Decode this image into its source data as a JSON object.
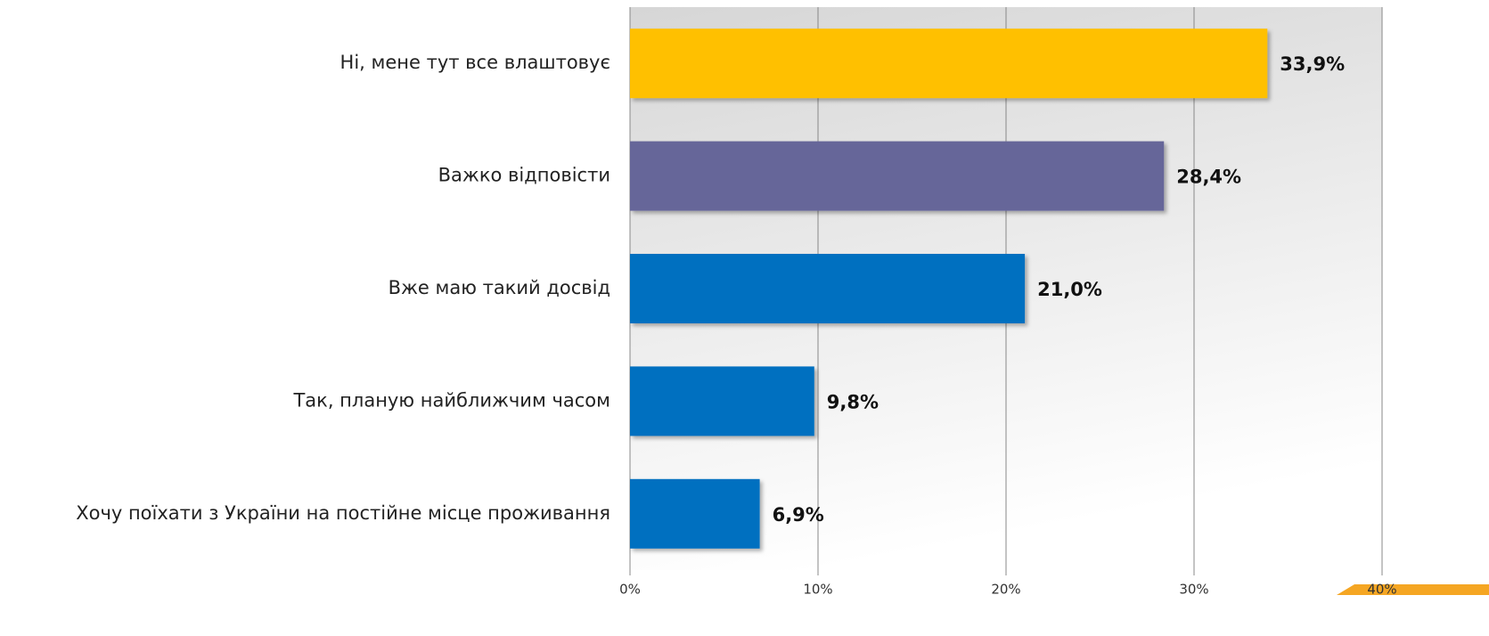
{
  "chart_data": {
    "type": "bar",
    "orientation": "horizontal",
    "categories": [
      "Ні, мене тут все влаштовує",
      "Важко відповісти",
      "Вже маю такий досвід",
      "Так, планую найближчим часом",
      "Хочу поїхати з України на постійне місце проживання"
    ],
    "values": [
      33.9,
      28.4,
      21.0,
      9.8,
      6.9
    ],
    "value_labels": [
      "33,9%",
      "28,4%",
      "21,0%",
      "9,8%",
      "6,9%"
    ],
    "colors": [
      "#ffc000",
      "#666699",
      "#0070c0",
      "#0070c0",
      "#0070c0"
    ],
    "xlim": [
      0,
      40
    ],
    "xticks": [
      {
        "value": 0,
        "label": "0%"
      },
      {
        "value": 10,
        "label": "10%"
      },
      {
        "value": 20,
        "label": "20%"
      },
      {
        "value": 30,
        "label": "30%"
      },
      {
        "value": 40,
        "label": "40%"
      }
    ],
    "grid": true
  }
}
